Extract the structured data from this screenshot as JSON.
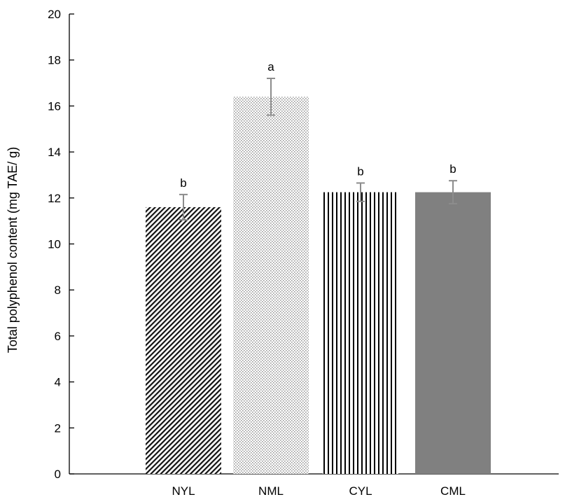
{
  "chart_data": {
    "type": "bar",
    "title": "",
    "xlabel": "",
    "ylabel": "Total polyphenol content (mg TAE/ g)",
    "ylim": [
      0,
      20
    ],
    "yticks": [
      0,
      2,
      4,
      6,
      8,
      10,
      12,
      14,
      16,
      18,
      20
    ],
    "categories": [
      "NYL",
      "NML",
      "CYL",
      "CML"
    ],
    "values": [
      11.6,
      16.4,
      12.25,
      12.25
    ],
    "errors": [
      0.55,
      0.8,
      0.4,
      0.5
    ],
    "significance_letters": [
      "b",
      "a",
      "b",
      "b"
    ],
    "bar_fills": [
      "diagonal-hatch",
      "fine-dots",
      "vertical-lines",
      "solid-gray"
    ],
    "colors": {
      "bar_gray": "#808080",
      "error_bar": "#8c8c8c",
      "axis": "#000000"
    },
    "grid": false,
    "legend": "none"
  }
}
